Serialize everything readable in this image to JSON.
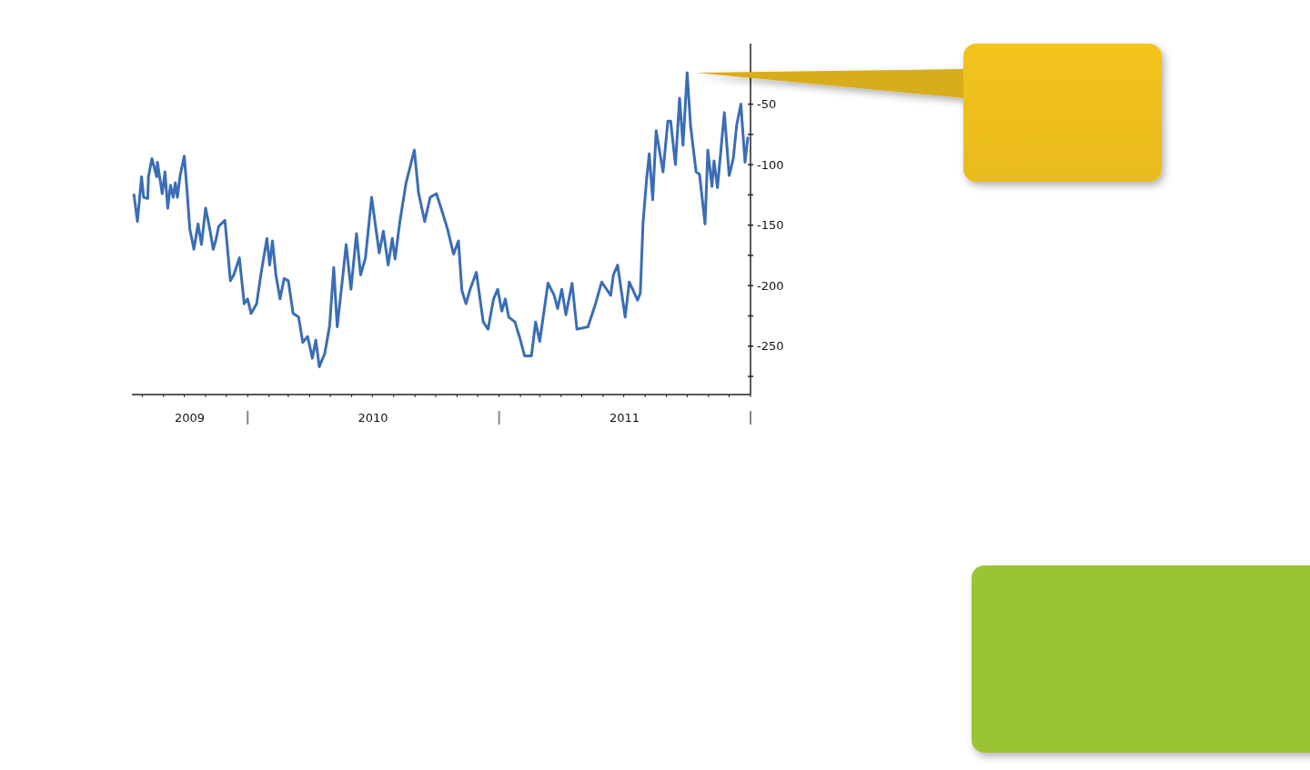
{
  "chart_data": {
    "type": "line",
    "xlim": [
      "2009-07-17",
      "2012-01-01"
    ],
    "ylim": [
      -290,
      0
    ],
    "yticks": [
      -50,
      -100,
      -150,
      -200,
      -250,
      {
        "value": -25,
        "label": null
      },
      {
        "value": -75,
        "label": null
      },
      {
        "value": -125,
        "label": null
      },
      {
        "value": -175,
        "label": null
      },
      {
        "value": -225,
        "label": null
      },
      {
        "value": -275,
        "label": null
      }
    ],
    "xticks": [
      {
        "value": "2009-10-09",
        "label": "2009"
      },
      {
        "value": "2010-07-02",
        "label": "2010"
      },
      {
        "value": "2011-07-02",
        "label": "2011"
      },
      {
        "value": "2009-08-01",
        "label": null
      },
      {
        "value": "2009-09-01",
        "label": null
      },
      {
        "value": "2009-10-01",
        "label": null
      },
      {
        "value": "2009-11-01",
        "label": null
      },
      {
        "value": "2009-12-01",
        "label": null
      },
      {
        "value": "2010-01-01",
        "label": null
      },
      {
        "value": "2010-02-01",
        "label": null
      },
      {
        "value": "2010-03-01",
        "label": null
      },
      {
        "value": "2010-04-01",
        "label": null
      },
      {
        "value": "2010-05-01",
        "label": null
      },
      {
        "value": "2010-06-01",
        "label": null
      },
      {
        "value": "2010-07-01",
        "label": null
      },
      {
        "value": "2010-08-01",
        "label": null
      },
      {
        "value": "2010-09-01",
        "label": null
      },
      {
        "value": "2010-10-01",
        "label": null
      },
      {
        "value": "2010-11-01",
        "label": null
      },
      {
        "value": "2010-12-01",
        "label": null
      },
      {
        "value": "2011-01-01",
        "label": null
      },
      {
        "value": "2011-02-01",
        "label": null
      },
      {
        "value": "2011-03-01",
        "label": null
      },
      {
        "value": "2011-04-01",
        "label": null
      },
      {
        "value": "2011-05-01",
        "label": null
      },
      {
        "value": "2011-06-01",
        "label": null
      },
      {
        "value": "2011-07-01",
        "label": null
      },
      {
        "value": "2011-08-01",
        "label": null
      },
      {
        "value": "2011-09-01",
        "label": null
      },
      {
        "value": "2011-10-01",
        "label": null
      },
      {
        "value": "2011-11-01",
        "label": null
      },
      {
        "value": "2011-12-01",
        "label": null
      },
      {
        "value": "2012-01-01",
        "label": null
      }
    ],
    "series": [
      {
        "color": "#3a6db5",
        "x": [
          "2009-07-20",
          "2009-07-25",
          "2009-07-31",
          "2009-08-03",
          "2009-08-09",
          "2009-08-10",
          "2009-08-15",
          "2009-08-22",
          "2009-08-23",
          "2009-08-30",
          "2009-09-03",
          "2009-09-07",
          "2009-09-11",
          "2009-09-15",
          "2009-09-18",
          "2009-09-21",
          "2009-09-25",
          "2009-10-01",
          "2009-10-05",
          "2009-10-09",
          "2009-10-15",
          "2009-10-21",
          "2009-10-26",
          "2009-11-01",
          "2009-11-07",
          "2009-11-12",
          "2009-11-16",
          "2009-11-20",
          "2009-11-29",
          "2009-12-07",
          "2009-12-12",
          "2009-12-20",
          "2009-12-27",
          "2010-01-01",
          "2010-01-06",
          "2010-01-14",
          "2010-01-21",
          "2010-01-29",
          "2010-02-02",
          "2010-02-06",
          "2010-02-11",
          "2010-02-17",
          "2010-02-23",
          "2010-03-01",
          "2010-03-08",
          "2010-03-16",
          "2010-03-22",
          "2010-03-29",
          "2010-04-05",
          "2010-04-10",
          "2010-04-15",
          "2010-04-23",
          "2010-04-30",
          "2010-05-06",
          "2010-05-11",
          "2010-05-19",
          "2010-05-24",
          "2010-05-31",
          "2010-06-08",
          "2010-06-14",
          "2010-06-21",
          "2010-06-30",
          "2010-07-11",
          "2010-07-17",
          "2010-07-24",
          "2010-07-30",
          "2010-08-03",
          "2010-08-10",
          "2010-08-19",
          "2010-08-31",
          "2010-09-06",
          "2010-09-15",
          "2010-09-23",
          "2010-10-02",
          "2010-10-10",
          "2010-10-18",
          "2010-10-27",
          "2010-11-03",
          "2010-11-08",
          "2010-11-14",
          "2010-11-20",
          "2010-11-29",
          "2010-12-09",
          "2010-12-16",
          "2010-12-24",
          "2010-12-30",
          "2011-01-05",
          "2011-01-10",
          "2011-01-15",
          "2011-01-24",
          "2011-01-31",
          "2011-02-07",
          "2011-02-17",
          "2011-02-23",
          "2011-03-01",
          "2011-03-13",
          "2011-03-22",
          "2011-03-27",
          "2011-04-02",
          "2011-04-08",
          "2011-04-17",
          "2011-04-24",
          "2011-05-10",
          "2011-05-21",
          "2011-05-30",
          "2011-06-12",
          "2011-06-16",
          "2011-06-22",
          "2011-07-03",
          "2011-07-09",
          "2011-07-21",
          "2011-07-25",
          "2011-07-29",
          "2011-08-03",
          "2011-08-07",
          "2011-08-12",
          "2011-08-17",
          "2011-08-27",
          "2011-09-03",
          "2011-09-07",
          "2011-09-14",
          "2011-09-20",
          "2011-09-25",
          "2011-10-01",
          "2011-10-06",
          "2011-10-14",
          "2011-10-19",
          "2011-10-27",
          "2011-10-31",
          "2011-11-06",
          "2011-11-09",
          "2011-11-14",
          "2011-11-24",
          "2011-12-01",
          "2011-12-07",
          "2011-12-12",
          "2011-12-18",
          "2011-12-24",
          "2011-12-28"
        ],
        "values": [
          -125,
          -147,
          -110,
          -127,
          -128,
          -110,
          -95,
          -110,
          -98,
          -124,
          -106,
          -136,
          -117,
          -127,
          -115,
          -127,
          -109,
          -93,
          -121,
          -153,
          -170,
          -149,
          -166,
          -136,
          -153,
          -170,
          -162,
          -151,
          -146,
          -196,
          -191,
          -177,
          -215,
          -211,
          -223,
          -215,
          -188,
          -161,
          -183,
          -163,
          -191,
          -211,
          -194,
          -196,
          -223,
          -226,
          -247,
          -242,
          -260,
          -245,
          -267,
          -256,
          -233,
          -185,
          -234,
          -193,
          -166,
          -203,
          -157,
          -191,
          -177,
          -127,
          -173,
          -155,
          -183,
          -161,
          -178,
          -147,
          -115,
          -88,
          -123,
          -147,
          -127,
          -124,
          -138,
          -153,
          -174,
          -163,
          -204,
          -215,
          -203,
          -189,
          -230,
          -236,
          -211,
          -203,
          -221,
          -211,
          -226,
          -230,
          -243,
          -258,
          -258,
          -230,
          -246,
          -198,
          -208,
          -219,
          -203,
          -224,
          -198,
          -236,
          -234,
          -215,
          -197,
          -208,
          -191,
          -183,
          -226,
          -197,
          -212,
          -206,
          -148,
          -113,
          -91,
          -129,
          -72,
          -106,
          -64,
          -64,
          -100,
          -45,
          -84,
          -24,
          -68,
          -106,
          -108,
          -149,
          -88,
          -118,
          -97,
          -119,
          -57,
          -109,
          -95,
          -67,
          -50,
          -98,
          -78
        ]
      }
    ]
  }
}
